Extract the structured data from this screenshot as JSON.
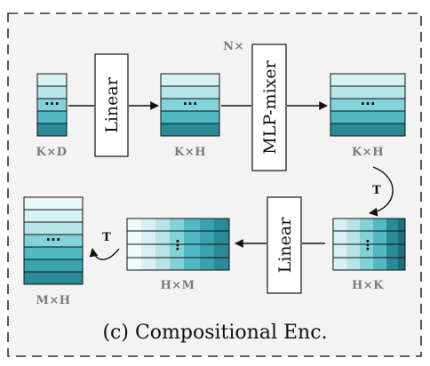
{
  "caption": "(c) Compositional Enc.",
  "blocks": {
    "linear_1": "Linear",
    "mlp_mixer": "MLP-mixer",
    "mlp_repeat": "N×",
    "linear_2": "Linear"
  },
  "dims": {
    "input": "K×D",
    "after_linear": "K×H",
    "after_mixer": "K×H",
    "transposed": "H×K",
    "after_linear_2": "H×M",
    "output": "M×H"
  },
  "transpose_label": "T",
  "transpose_label_2": "T",
  "ellipsis": "···",
  "ellipsis_vertical": "⋮",
  "colors": {
    "panel_bg": "#f3f3f3",
    "border": "#333333",
    "shades": [
      "#d7f0f1",
      "#b6e4e7",
      "#83d2da",
      "#52b8c4",
      "#2a8a97",
      "#1e6e7a"
    ]
  }
}
